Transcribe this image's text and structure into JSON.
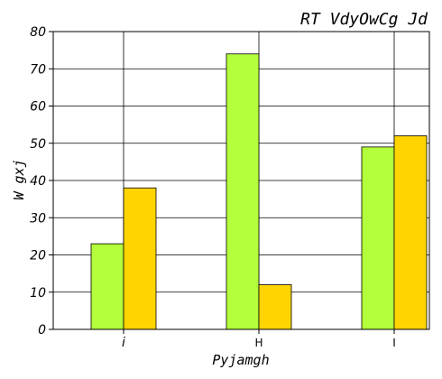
{
  "chart_data": {
    "type": "bar",
    "title": "RT VdyOwCg Jd",
    "xlabel": "Pyjamgh",
    "ylabel": "W gxj",
    "categories": [
      "i",
      "H",
      "I"
    ],
    "series": [
      {
        "values": [
          23,
          74,
          49
        ],
        "color": "#b3ff3c"
      },
      {
        "values": [
          38,
          12,
          52
        ],
        "color": "#ffd400"
      }
    ],
    "ylim": [
      0,
      80
    ],
    "yticks": [
      0,
      10,
      20,
      30,
      40,
      50,
      60,
      70,
      80
    ],
    "grid": true
  }
}
